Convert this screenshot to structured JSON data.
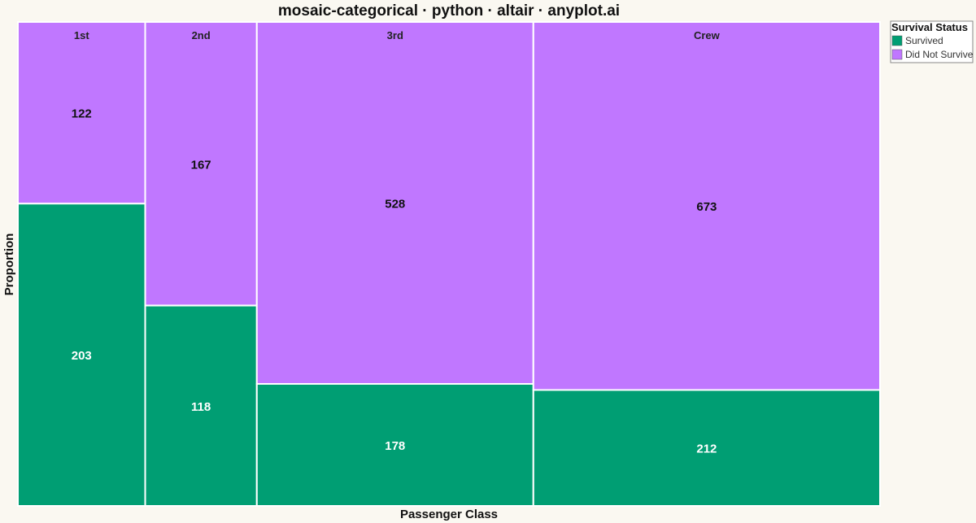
{
  "chart_data": {
    "type": "mosaic",
    "title": "mosaic-categorical · python · altair · anyplot.ai",
    "xlabel": "Passenger Class",
    "ylabel": "Proportion",
    "categories": [
      "1st",
      "2nd",
      "3rd",
      "Crew"
    ],
    "series": [
      {
        "name": "Survived",
        "values": [
          203,
          118,
          178,
          212
        ],
        "color": "#009E73",
        "label_color": "#FFFFFF"
      },
      {
        "name": "Did Not Survive",
        "values": [
          122,
          167,
          528,
          673
        ],
        "color": "#C077FF",
        "label_color": "#111111"
      }
    ],
    "legend": {
      "title": "Survival Status",
      "position": "top-right",
      "items": [
        "Survived",
        "Did Not Survive"
      ]
    },
    "grid": false
  }
}
